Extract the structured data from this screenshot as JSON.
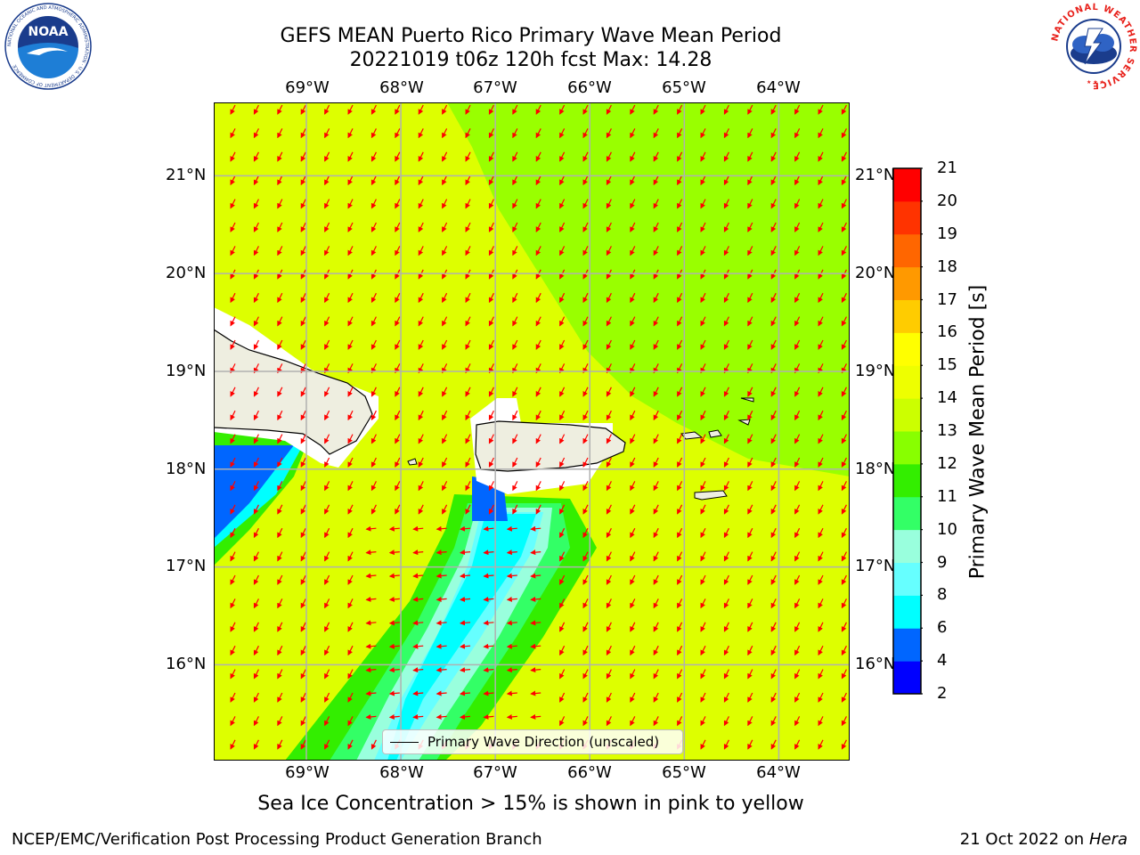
{
  "header": {
    "title_line1": "GEFS MEAN Puerto Rico Primary Wave Mean Period",
    "title_line2": "20221019 t06z 120h fcst   Max: 14.28"
  },
  "logos": {
    "noaa_text": "NOAA",
    "noaa_ring": "NATIONAL OCEANIC AND ATMOSPHERIC ADMINISTRATION · U.S. DEPARTMENT OF COMMERCE",
    "nws_ring": "NATIONAL WEATHER SERVICE"
  },
  "map": {
    "lon_labels": [
      "69°W",
      "68°W",
      "67°W",
      "66°W",
      "65°W",
      "64°W"
    ],
    "lat_labels": [
      "21°N",
      "20°N",
      "19°N",
      "18°N",
      "17°N",
      "16°N"
    ],
    "lon_range": [
      -69.98,
      -63.25
    ],
    "lat_range": [
      15.02,
      21.75
    ],
    "gridlines": true,
    "land_color": "#eeeee0",
    "arrow_color": "#ff0000",
    "legend_label": "Primary Wave Direction (unscaled)",
    "legend_placement": "bottom-center"
  },
  "colorbar": {
    "label": "Primary Wave Mean Period [s]",
    "ticks": [
      "2",
      "4",
      "6",
      "8",
      "9",
      "10",
      "11",
      "12",
      "13",
      "14",
      "15",
      "16",
      "17",
      "18",
      "19",
      "20",
      "21"
    ],
    "colors": [
      "#0000ff",
      "#0066ff",
      "#00ffff",
      "#66ffff",
      "#99ffdd",
      "#33ff66",
      "#33ee00",
      "#88ff00",
      "#ccff00",
      "#eeff00",
      "#ffff00",
      "#ffcc00",
      "#ff9900",
      "#ff6600",
      "#ff3300",
      "#ff0000"
    ]
  },
  "notes": {
    "sea_ice": "Sea Ice Concentration > 15% is shown in pink to yellow"
  },
  "footer": {
    "left": "NCEP/EMC/Verification Post Processing Product Generation Branch",
    "right_prefix": "21 Oct 2022 on ",
    "right_machine": "Hera"
  }
}
